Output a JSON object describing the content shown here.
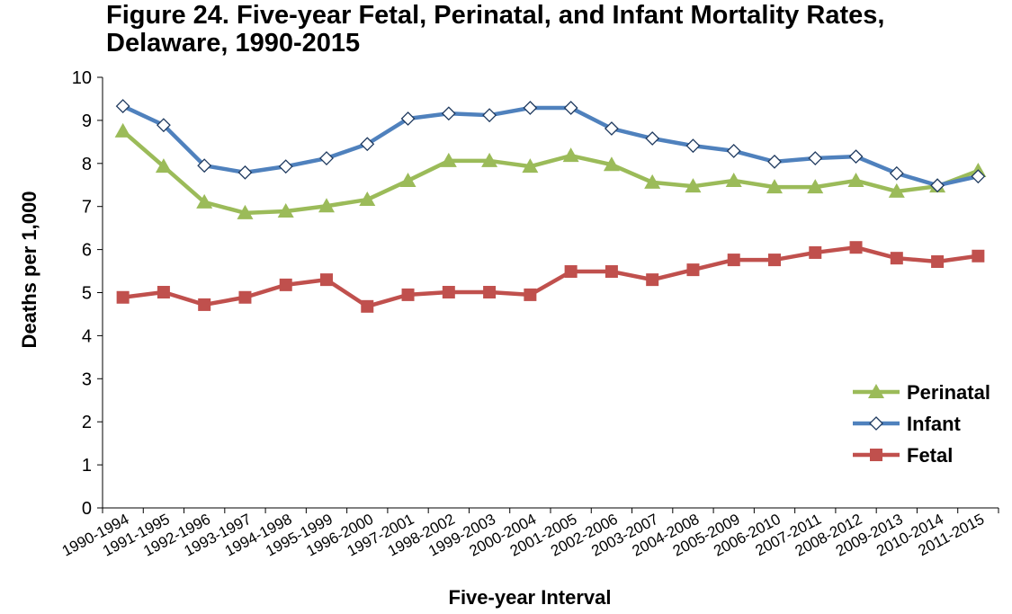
{
  "chart_data": {
    "type": "line",
    "title": "Figure 24. Five-year Fetal, Perinatal, and Infant Mortality Rates, Delaware, 1990-2015",
    "xlabel": "Five-year Interval",
    "ylabel": "Deaths per 1,000",
    "categories": [
      "1990-1994",
      "1991-1995",
      "1992-1996",
      "1993-1997",
      "1994-1998",
      "1995-1999",
      "1996-2000",
      "1997-2001",
      "1998-2002",
      "1999-2003",
      "2000-2004",
      "2001-2005",
      "2002-2006",
      "2003-2007",
      "2004-2008",
      "2005-2009",
      "2006-2010",
      "2007-2011",
      "2008-2012",
      "2009-2013",
      "2010-2014",
      "2011-2015"
    ],
    "series": [
      {
        "name": "Perinatal",
        "color": "#9bbb59",
        "marker": "triangle",
        "values": [
          8.75,
          7.93,
          7.1,
          6.85,
          6.89,
          7.01,
          7.16,
          7.6,
          8.06,
          8.06,
          7.93,
          8.18,
          7.97,
          7.56,
          7.47,
          7.6,
          7.45,
          7.45,
          7.6,
          7.35,
          7.47,
          7.83
        ]
      },
      {
        "name": "Infant",
        "color": "#4f81bd",
        "marker": "diamond",
        "values": [
          9.33,
          8.89,
          7.95,
          7.79,
          7.93,
          8.12,
          8.45,
          9.04,
          9.16,
          9.12,
          9.29,
          9.29,
          8.81,
          8.58,
          8.41,
          8.29,
          8.04,
          8.12,
          8.16,
          7.77,
          7.49,
          7.7
        ]
      },
      {
        "name": "Fetal",
        "color": "#c0504d",
        "marker": "square",
        "values": [
          4.89,
          5.01,
          4.72,
          4.89,
          5.18,
          5.3,
          4.68,
          4.95,
          5.01,
          5.01,
          4.95,
          5.49,
          5.49,
          5.3,
          5.53,
          5.76,
          5.76,
          5.93,
          6.05,
          5.8,
          5.72,
          5.85
        ]
      }
    ],
    "ylim": [
      0,
      10
    ],
    "yticks": [
      0,
      1,
      2,
      3,
      4,
      5,
      6,
      7,
      8,
      9,
      10
    ],
    "grid": false,
    "legend": "lower right"
  }
}
